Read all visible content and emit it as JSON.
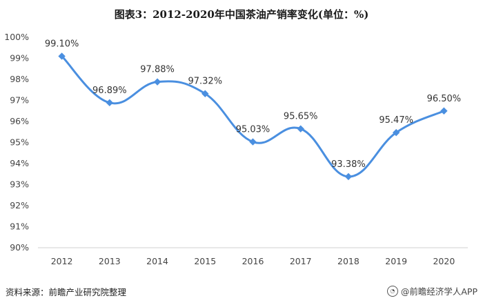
{
  "chart_data": {
    "type": "line",
    "title": "图表3：2012-2020年中国茶油产销率变化(单位：%)",
    "categories": [
      "2012",
      "2013",
      "2014",
      "2015",
      "2016",
      "2017",
      "2018",
      "2019",
      "2020"
    ],
    "series": [
      {
        "values": [
          99.1,
          96.89,
          97.88,
          97.32,
          95.03,
          95.65,
          93.38,
          95.47,
          96.5
        ],
        "labels": [
          "99.10%",
          "96.89%",
          "97.88%",
          "97.32%",
          "95.03%",
          "95.65%",
          "93.38%",
          "95.47%",
          "96.50%"
        ]
      }
    ],
    "ylim": [
      90,
      100
    ],
    "yticks": [
      "90%",
      "91%",
      "92%",
      "93%",
      "94%",
      "95%",
      "96%",
      "97%",
      "98%",
      "99%",
      "100%"
    ],
    "grid": false,
    "color": "#4a8fe0",
    "smooth": true
  },
  "source": "资料来源：前瞻产业研究院整理",
  "watermark": "@前瞻经济学人APP"
}
